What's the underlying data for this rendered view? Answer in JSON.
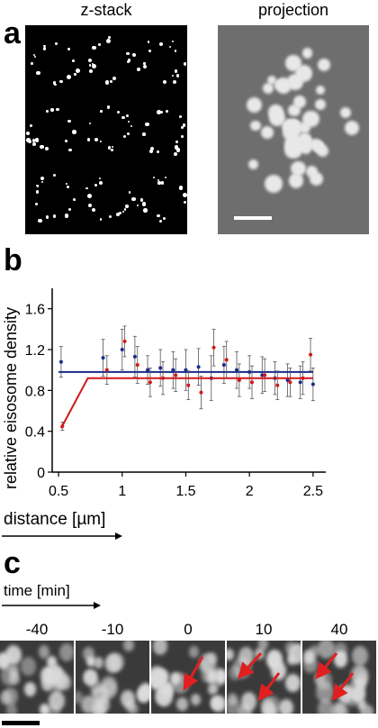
{
  "panels": {
    "a": {
      "letter": "a",
      "left_title": "z-stack",
      "right_title": "projection"
    },
    "b": {
      "letter": "b",
      "arrow_label": "distance [µm]"
    },
    "c": {
      "letter": "c",
      "time_label": "time [min]",
      "frames": [
        "-40",
        "-10",
        "0",
        "10",
        "40"
      ]
    }
  },
  "chart_data": {
    "type": "scatter",
    "xlabel": "distance [µm]",
    "ylabel": "relative eisosome density",
    "xlim": [
      0.45,
      2.6
    ],
    "ylim": [
      0,
      1.8
    ],
    "xticks": [
      "0.5",
      "1",
      "1.5",
      "2",
      "2.5"
    ],
    "yticks": [
      "0",
      "0.4",
      "0.8",
      "1.2",
      "1.6"
    ],
    "series": [
      {
        "color": "#1a2a8c",
        "x": [
          0.52,
          0.85,
          1.0,
          1.1,
          1.2,
          1.3,
          1.4,
          1.5,
          1.6,
          1.7,
          1.8,
          1.9,
          2.0,
          2.1,
          2.2,
          2.3,
          2.4,
          2.5
        ],
        "y": [
          1.08,
          1.12,
          1.2,
          1.13,
          1.0,
          1.02,
          1.0,
          1.0,
          1.03,
          0.92,
          1.05,
          1.0,
          0.98,
          0.95,
          0.92,
          0.9,
          0.88,
          0.86
        ],
        "err": [
          0.15,
          0.18,
          0.2,
          0.2,
          0.14,
          0.18,
          0.18,
          0.2,
          0.18,
          0.22,
          0.18,
          0.18,
          0.16,
          0.18,
          0.16,
          0.16,
          0.16,
          0.16
        ],
        "fit": {
          "x": [
            0.5,
            2.5
          ],
          "y": [
            0.98,
            0.98
          ]
        }
      },
      {
        "color": "#d01818",
        "x": [
          0.53,
          0.88,
          1.02,
          1.12,
          1.22,
          1.32,
          1.42,
          1.52,
          1.62,
          1.72,
          1.82,
          1.92,
          2.02,
          2.12,
          2.22,
          2.32,
          2.42,
          2.48
        ],
        "y": [
          0.45,
          1.0,
          1.28,
          1.05,
          0.88,
          0.92,
          0.95,
          0.85,
          0.78,
          1.22,
          1.1,
          0.9,
          0.88,
          0.95,
          0.85,
          0.88,
          0.92,
          1.15
        ],
        "err": [
          0.04,
          0.14,
          0.15,
          0.18,
          0.14,
          0.16,
          0.16,
          0.14,
          0.16,
          0.18,
          0.18,
          0.16,
          0.16,
          0.16,
          0.14,
          0.14,
          0.16,
          0.16
        ],
        "fit": {
          "x": [
            0.52,
            0.73,
            2.5
          ],
          "y": [
            0.43,
            0.92,
            0.92
          ]
        }
      }
    ]
  }
}
